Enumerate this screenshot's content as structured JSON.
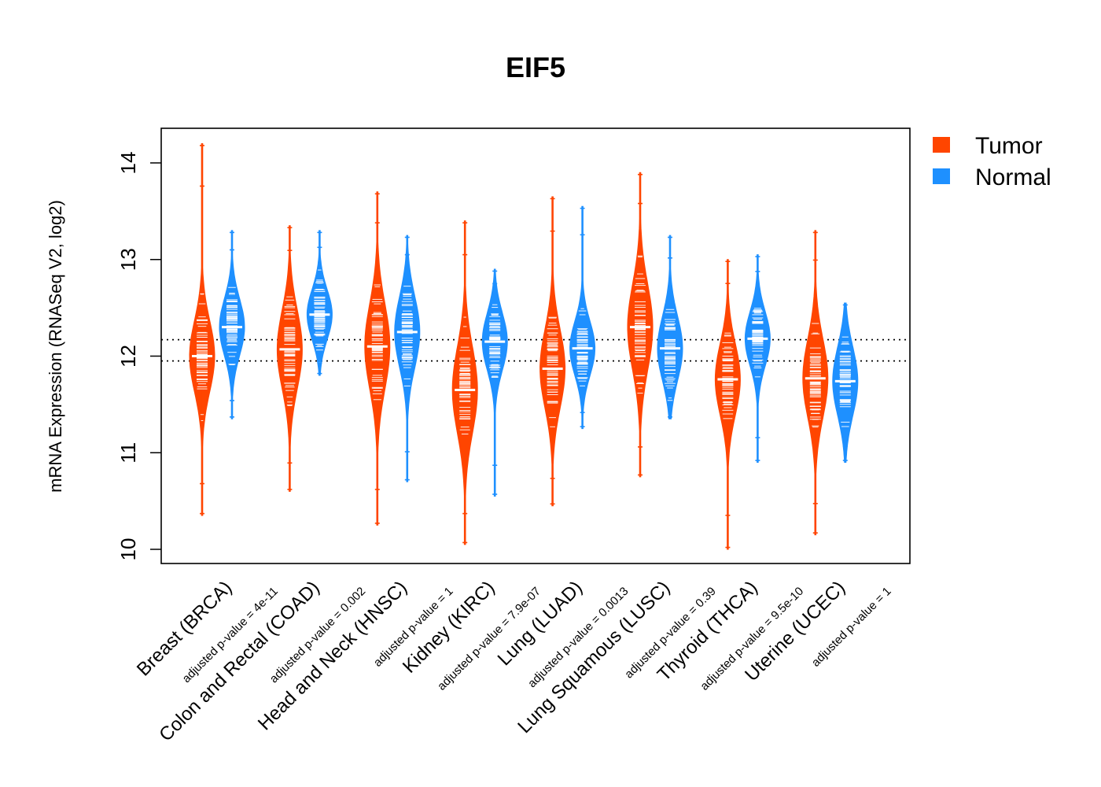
{
  "chart_data": {
    "type": "violin",
    "title": "EIF5",
    "ylabel": "mRNA Expression (RNASeq V2, log2)",
    "xlabel": "",
    "ylim": [
      9.85,
      14.45
    ],
    "yticks": [
      "10",
      "11",
      "12",
      "13",
      "14"
    ],
    "reference_lines": [
      11.95,
      12.17
    ],
    "legend": {
      "position": "top-right-outside",
      "items": [
        {
          "label": "Tumor",
          "color": "#ff4500"
        },
        {
          "label": "Normal",
          "color": "#1e90ff"
        }
      ]
    },
    "colors": {
      "tumor": "#ff4500",
      "normal": "#1e90ff"
    },
    "series": [
      {
        "name": "Tumor",
        "color": "#ff4500"
      },
      {
        "name": "Normal",
        "color": "#1e90ff"
      }
    ],
    "groups": [
      {
        "label": "Breast (BRCA)",
        "pvalue_label": "adjusted p-value = 4e-11",
        "tumor": {
          "min": 10.35,
          "max": 14.2,
          "q1": 11.75,
          "median": 12.0,
          "q3": 12.25
        },
        "normal": {
          "min": 11.35,
          "max": 13.3,
          "q1": 12.1,
          "median": 12.3,
          "q3": 12.5
        }
      },
      {
        "label": "Colon and Rectal (COAD)",
        "pvalue_label": "adjusted p-value = 0.002",
        "tumor": {
          "min": 10.6,
          "max": 13.35,
          "q1": 11.8,
          "median": 12.07,
          "q3": 12.35
        },
        "normal": {
          "min": 11.8,
          "max": 13.3,
          "q1": 12.25,
          "median": 12.43,
          "q3": 12.6
        }
      },
      {
        "label": "Head and Neck (HNSC)",
        "pvalue_label": "adjusted p-value = 1",
        "tumor": {
          "min": 10.25,
          "max": 13.7,
          "q1": 11.8,
          "median": 12.1,
          "q3": 12.4
        },
        "normal": {
          "min": 10.7,
          "max": 13.25,
          "q1": 12.0,
          "median": 12.25,
          "q3": 12.5
        }
      },
      {
        "label": "Kidney (KIRC)",
        "pvalue_label": "adjusted p-value = 7.9e-07",
        "tumor": {
          "min": 10.05,
          "max": 13.4,
          "q1": 11.35,
          "median": 11.65,
          "q3": 11.95
        },
        "normal": {
          "min": 10.55,
          "max": 12.9,
          "q1": 11.95,
          "median": 12.15,
          "q3": 12.35
        }
      },
      {
        "label": "Lung (LUAD)",
        "pvalue_label": "adjusted p-value = 0.0013",
        "tumor": {
          "min": 10.45,
          "max": 13.65,
          "q1": 11.6,
          "median": 11.87,
          "q3": 12.15
        },
        "normal": {
          "min": 11.25,
          "max": 13.55,
          "q1": 11.9,
          "median": 12.08,
          "q3": 12.28
        }
      },
      {
        "label": "Lung Squamous (LUSC)",
        "pvalue_label": "adjusted p-value = 0.39",
        "tumor": {
          "min": 10.75,
          "max": 13.9,
          "q1": 12.0,
          "median": 12.3,
          "q3": 12.6
        },
        "normal": {
          "min": 11.35,
          "max": 13.25,
          "q1": 11.85,
          "median": 12.08,
          "q3": 12.3
        }
      },
      {
        "label": "Thyroid (THCA)",
        "pvalue_label": "adjusted p-value = 9.5e-10",
        "tumor": {
          "min": 10.0,
          "max": 13.0,
          "q1": 11.5,
          "median": 11.76,
          "q3": 12.0
        },
        "normal": {
          "min": 10.9,
          "max": 13.05,
          "q1": 12.0,
          "median": 12.18,
          "q3": 12.38
        }
      },
      {
        "label": "Uterine (UCEC)",
        "pvalue_label": "adjusted p-value = 1",
        "tumor": {
          "min": 10.15,
          "max": 13.3,
          "q1": 11.5,
          "median": 11.77,
          "q3": 12.05
        },
        "normal": {
          "min": 10.9,
          "max": 12.55,
          "q1": 11.5,
          "median": 11.74,
          "q3": 11.98
        }
      }
    ]
  }
}
